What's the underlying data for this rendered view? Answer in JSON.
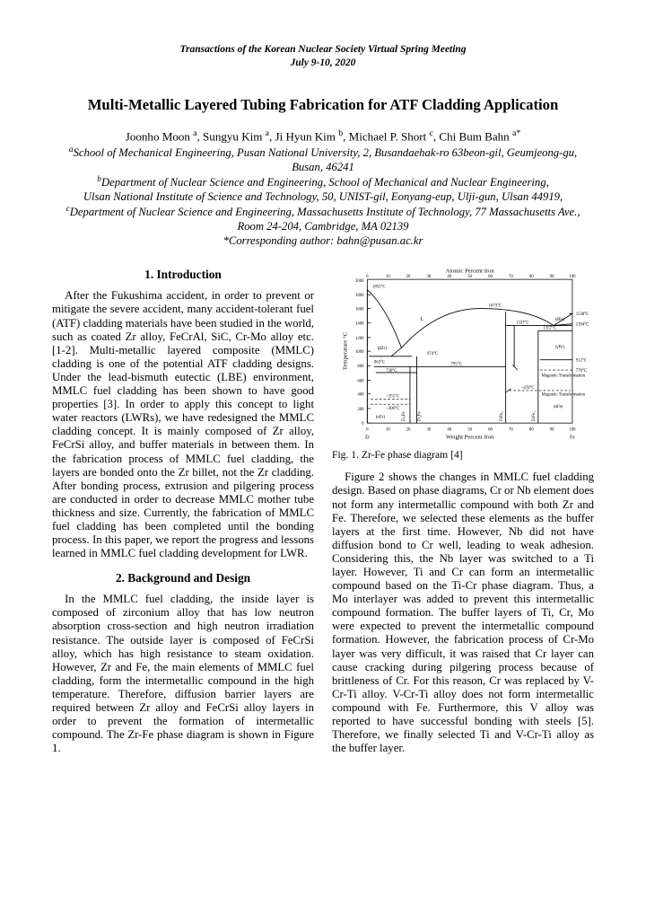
{
  "journal": {
    "line1": "Transactions of the Korean Nuclear Society Virtual Spring Meeting",
    "line2": "July 9-10, 2020"
  },
  "title": "Multi-Metallic Layered Tubing Fabrication for ATF Cladding Application",
  "authors_html": "Joonho Moon <sup>a</sup>, Sungyu Kim <sup>a</sup>, Ji Hyun Kim <sup>b</sup>, Michael P. Short <sup>c</sup>, Chi Bum Bahn <sup>a*</sup>",
  "affiliations": [
    "<sup>a</sup>School of Mechanical Engineering, Pusan National University, 2, Busandaehak-ro 63beon-gil, Geumjeong-gu, Busan, 46241",
    "<sup>b</sup>Department of Nuclear Science and Engineering, School of Mechanical and Nuclear Engineering,",
    "Ulsan National Institute of Science and Technology, 50, UNIST-gil, Eonyang-eup, Ulji-gun, Ulsan 44919,",
    "<sup>c</sup>Department of Nuclear Science and Engineering, Massachusetts Institute of Technology, 77 Massachusetts Ave., Room 24-204, Cambridge, MA 02139",
    "*Corresponding author: bahn@pusan.ac.kr"
  ],
  "sections": {
    "s1_heading": "1. Introduction",
    "s1_body": "After the Fukushima accident, in order to prevent or mitigate the severe accident, many accident-tolerant fuel (ATF) cladding materials have been studied in the world, such as coated Zr alloy, FeCrAl, SiC, Cr-Mo alloy etc. [1-2]. Multi-metallic layered composite (MMLC) cladding is one of the potential ATF cladding designs. Under the lead-bismuth eutectic (LBE) environment, MMLC fuel cladding has been shown to have good properties [3]. In order to apply this concept to light water reactors (LWRs), we have redesigned the MMLC cladding concept. It is mainly composed of Zr alloy, FeCrSi alloy, and buffer materials in between them. In the fabrication process of MMLC fuel cladding, the layers are bonded onto the Zr billet, not the Zr cladding. After bonding process, extrusion and pilgering process are conducted in order to decrease MMLC mother tube thickness and size. Currently, the fabrication of MMLC fuel cladding has been completed until the bonding process. In this paper, we report the progress and lessons learned in MMLC fuel cladding development for LWR.",
    "s2_heading": "2. Background and Design",
    "s2_body": "In the MMLC fuel cladding, the inside layer is composed of zirconium alloy that has low neutron absorption cross-section and high neutron irradiation resistance. The outside layer is composed of FeCrSi alloy, which has high resistance to steam oxidation. However, Zr and Fe, the main elements of MMLC fuel cladding, form the intermetallic compound in the high temperature. Therefore, diffusion barrier layers are required between Zr alloy and FeCrSi alloy layers in order to prevent the formation of intermetallic compound. The Zr-Fe phase diagram is shown in Figure 1.",
    "s2_right": "Figure 2 shows the changes in MMLC fuel cladding design. Based on phase diagrams, Cr or Nb element does not form any intermetallic compound with both Zr and Fe. Therefore, we selected these elements as the buffer layers at the first time. However, Nb did not have diffusion bond to Cr well, leading to weak adhesion. Considering this, the Nb layer was switched to a Ti layer. However, Ti and Cr can form an intermetallic compound based on the Ti-Cr phase diagram. Thus, a Mo interlayer was added to prevent this intermetallic compound formation. The buffer layers of Ti, Cr, Mo were expected to prevent the intermetallic compound formation. However, the fabrication process of Cr-Mo layer was very difficult, it was raised that Cr layer can cause cracking during pilgering process because of brittleness of Cr. For this reason, Cr was replaced by V-Cr-Ti alloy. V-Cr-Ti alloy does not form intermetallic compound with Fe. Furthermore, this V alloy was reported to have successful bonding with steels [5]. Therefore, we finally selected Ti and V-Cr-Ti alloy as the buffer layer."
  },
  "figure1": {
    "caption": "Fig. 1. Zr-Fe phase diagram [4]",
    "chart": {
      "type": "phase-diagram",
      "x_axis_bottom": {
        "label": "Weight Percent Iron",
        "min": 0,
        "max": 100,
        "ticks": [
          0,
          10,
          20,
          30,
          40,
          50,
          60,
          70,
          80,
          90,
          100
        ],
        "left_label": "Zr",
        "right_label": "Fe"
      },
      "x_axis_top": {
        "label": "Atomic Percent Iron",
        "ticks": [
          0,
          10,
          20,
          30,
          40,
          50,
          60,
          70,
          80,
          90,
          100
        ]
      },
      "y_axis": {
        "label": "Temperature °C",
        "min": 0,
        "max": 2000,
        "ticks": [
          0,
          200,
          400,
          600,
          800,
          1000,
          1200,
          1400,
          1600,
          1800,
          2000
        ]
      },
      "annotations": {
        "L": "L",
        "temps": [
          "1855°C",
          "1673°C",
          "1538°C",
          "1394°C",
          "1357°C",
          "1337°C",
          "974°C",
          "912°C",
          "863°C",
          "795°C",
          "770°C",
          "730°C",
          "~355°C",
          "~300°C",
          "~470°C"
        ],
        "phases": [
          "(αZr)",
          "(βZr)",
          "Zr₃Fe",
          "Zr₂Fe",
          "ZrFe₂",
          "ZrFe₃",
          "(αFe)",
          "(γFe)",
          "(δFe)"
        ],
        "notes": [
          "Magnetic Transformation"
        ]
      },
      "colors": {
        "stroke": "#000000",
        "background": "#ffffff"
      },
      "line_width": 0.9,
      "font_size_pt": 6
    }
  }
}
